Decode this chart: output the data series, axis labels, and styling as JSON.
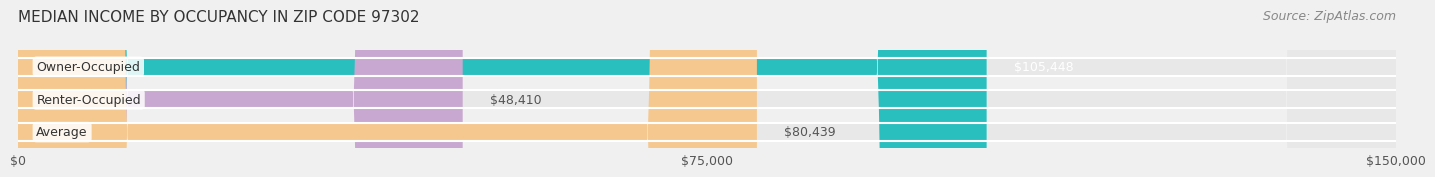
{
  "title": "MEDIAN INCOME BY OCCUPANCY IN ZIP CODE 97302",
  "source": "Source: ZipAtlas.com",
  "categories": [
    "Owner-Occupied",
    "Renter-Occupied",
    "Average"
  ],
  "values": [
    105448,
    48410,
    80439
  ],
  "bar_colors": [
    "#2abfbf",
    "#c8a8d0",
    "#f5c890"
  ],
  "label_colors": [
    "#ffffff",
    "#555555",
    "#555555"
  ],
  "value_labels": [
    "$105,448",
    "$48,410",
    "$80,439"
  ],
  "x_ticks": [
    0,
    75000,
    150000
  ],
  "x_tick_labels": [
    "$0",
    "$75,000",
    "$150,000"
  ],
  "xlim": [
    0,
    150000
  ],
  "bar_height": 0.55,
  "background_color": "#f0f0f0",
  "bar_background_color": "#e8e8e8",
  "title_fontsize": 11,
  "source_fontsize": 9,
  "label_fontsize": 9,
  "value_fontsize": 9
}
